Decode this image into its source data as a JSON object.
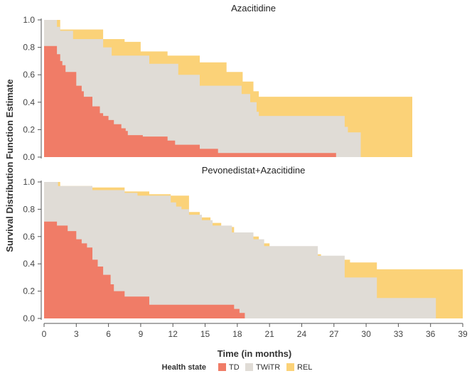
{
  "chart_data": {
    "type": "area",
    "subtype": "stacked-step",
    "xlabel": "Time (in months)",
    "ylabel": "Survival Distribution Function Estimate",
    "x_ticks": [
      0,
      3,
      6,
      9,
      12,
      15,
      18,
      21,
      24,
      27,
      30,
      33,
      36,
      39
    ],
    "y_ticks": [
      "0.0",
      "0.2",
      "0.4",
      "0.6",
      "0.8",
      "1.0"
    ],
    "xlim": [
      0,
      39
    ],
    "ylim": [
      0,
      1
    ],
    "grid": false,
    "legend": {
      "title": "Health state",
      "position": "bottom",
      "entries": [
        {
          "name": "TD",
          "color": "#f07c67"
        },
        {
          "name": "TWiTR",
          "color": "#e0dcd6"
        },
        {
          "name": "REL",
          "color": "#fbd278"
        }
      ]
    },
    "panels": [
      {
        "title": "Azacitidine",
        "series": [
          {
            "name": "REL",
            "color": "#fbd278",
            "steps": [
              [
                0,
                1.0
              ],
              [
                1.5,
                0.93
              ],
              [
                5.5,
                0.86
              ],
              [
                7.5,
                0.84
              ],
              [
                9,
                0.77
              ],
              [
                11.5,
                0.74
              ],
              [
                14.5,
                0.69
              ],
              [
                17,
                0.62
              ],
              [
                18.5,
                0.55
              ],
              [
                19.5,
                0.48
              ],
              [
                20,
                0.44
              ],
              [
                34.3,
                0.0
              ]
            ]
          },
          {
            "name": "TWiTR",
            "color": "#e0dcd6",
            "steps": [
              [
                0,
                1.0
              ],
              [
                1.2,
                0.95
              ],
              [
                1.5,
                0.92
              ],
              [
                2.7,
                0.86
              ],
              [
                5.5,
                0.8
              ],
              [
                6.3,
                0.74
              ],
              [
                9.8,
                0.68
              ],
              [
                12.5,
                0.6
              ],
              [
                14.5,
                0.52
              ],
              [
                18.4,
                0.46
              ],
              [
                19.2,
                0.4
              ],
              [
                19.8,
                0.33
              ],
              [
                20,
                0.3
              ],
              [
                28,
                0.22
              ],
              [
                28.3,
                0.18
              ],
              [
                29.5,
                0.0
              ]
            ]
          },
          {
            "name": "TD",
            "color": "#f07c67",
            "steps": [
              [
                0,
                0.81
              ],
              [
                1.2,
                0.75
              ],
              [
                1.5,
                0.7
              ],
              [
                1.7,
                0.67
              ],
              [
                2,
                0.62
              ],
              [
                3,
                0.52
              ],
              [
                3.5,
                0.48
              ],
              [
                3.7,
                0.44
              ],
              [
                4.5,
                0.37
              ],
              [
                5.2,
                0.32
              ],
              [
                5.5,
                0.3
              ],
              [
                6,
                0.27
              ],
              [
                6.5,
                0.24
              ],
              [
                7.2,
                0.21
              ],
              [
                7.6,
                0.19
              ],
              [
                7.8,
                0.16
              ],
              [
                9.2,
                0.15
              ],
              [
                9.5,
                0.15
              ],
              [
                11.5,
                0.12
              ],
              [
                12.2,
                0.09
              ],
              [
                13,
                0.09
              ],
              [
                14.5,
                0.06
              ],
              [
                16,
                0.06
              ],
              [
                16.2,
                0.03
              ],
              [
                27.2,
                0.0
              ]
            ]
          }
        ]
      },
      {
        "title": "Pevonedistat+Azacitidine",
        "series": [
          {
            "name": "REL",
            "color": "#fbd278",
            "steps": [
              [
                0,
                1.0
              ],
              [
                1.5,
                0.97
              ],
              [
                4.5,
                0.96
              ],
              [
                7.5,
                0.93
              ],
              [
                9.8,
                0.91
              ],
              [
                11.8,
                0.9
              ],
              [
                13.5,
                0.78
              ],
              [
                14.5,
                0.74
              ],
              [
                15.5,
                0.7
              ],
              [
                16.5,
                0.67
              ],
              [
                17.7,
                0.63
              ],
              [
                19,
                0.6
              ],
              [
                20,
                0.55
              ],
              [
                21,
                0.51
              ],
              [
                24.5,
                0.47
              ],
              [
                25.8,
                0.43
              ],
              [
                28.5,
                0.41
              ],
              [
                31,
                0.36
              ],
              [
                39,
                0.0
              ]
            ]
          },
          {
            "name": "TWiTR",
            "color": "#e0dcd6",
            "steps": [
              [
                0,
                1.0
              ],
              [
                1.3,
                0.97
              ],
              [
                4.5,
                0.94
              ],
              [
                7.5,
                0.92
              ],
              [
                8.7,
                0.9
              ],
              [
                11.8,
                0.85
              ],
              [
                12.3,
                0.82
              ],
              [
                12.8,
                0.8
              ],
              [
                13.5,
                0.76
              ],
              [
                14.7,
                0.72
              ],
              [
                15.7,
                0.68
              ],
              [
                17.5,
                0.63
              ],
              [
                19.5,
                0.58
              ],
              [
                20.5,
                0.53
              ],
              [
                25.5,
                0.46
              ],
              [
                28,
                0.3
              ],
              [
                31,
                0.15
              ],
              [
                36.5,
                0.0
              ]
            ]
          },
          {
            "name": "TD",
            "color": "#f07c67",
            "steps": [
              [
                0,
                0.71
              ],
              [
                1.2,
                0.68
              ],
              [
                2.2,
                0.64
              ],
              [
                3,
                0.58
              ],
              [
                3.5,
                0.55
              ],
              [
                4,
                0.52
              ],
              [
                4.5,
                0.43
              ],
              [
                5,
                0.38
              ],
              [
                5.5,
                0.32
              ],
              [
                6.2,
                0.25
              ],
              [
                6.5,
                0.2
              ],
              [
                7.5,
                0.16
              ],
              [
                8,
                0.16
              ],
              [
                9.8,
                0.1
              ],
              [
                17.7,
                0.07
              ],
              [
                18.2,
                0.04
              ],
              [
                18.7,
                0.0
              ]
            ]
          }
        ]
      }
    ]
  }
}
